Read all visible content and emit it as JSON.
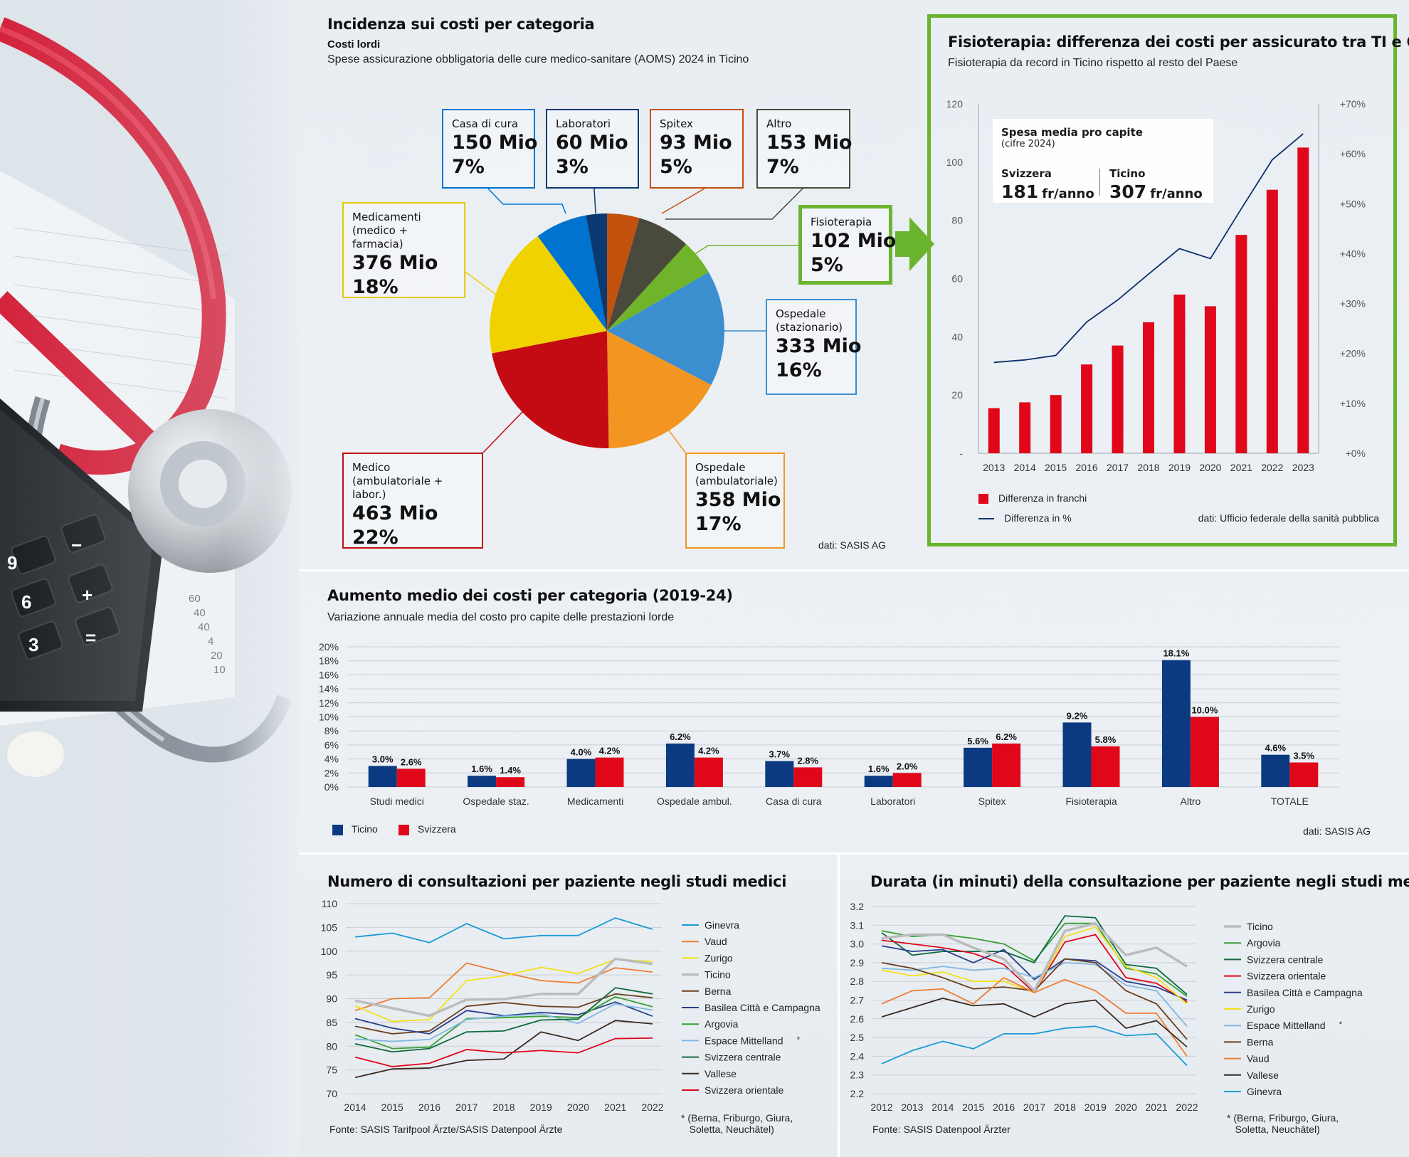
{
  "pie_panel": {
    "title": "Incidenza sui costi per categoria",
    "subtitle_bold": "Costi lordi",
    "subtitle": "Spese assicurazione obbligatoria delle cure medico-sanitare (AOMS) 2024 in Ticino",
    "source": "dati: SASIS AG"
  },
  "physio_panel": {
    "title": "Fisioterapia: differenza dei costi per assicurato tra TI e CH",
    "subtitle": "Fisioterapia da record in Ticino rispetto al resto del Paese",
    "inset_title": "Spesa media pro capite",
    "inset_subtitle": "(cifre 2024)",
    "inset_ch_label": "Svizzera",
    "inset_ch_value": "181",
    "inset_ti_label": "Ticino",
    "inset_ti_value": "307",
    "inset_unit": "fr/anno",
    "source": "dati: Ufficio federale della sanità pubblica"
  },
  "bar_panel": {
    "title": "Aumento medio dei costi per categoria (2019-24)",
    "subtitle": "Variazione annuale media del costo pro capite delle prestazioni lorde",
    "source": "dati: SASIS AG"
  },
  "consult_panel": {
    "title": "Numero di consultazioni per paziente negli studi medici",
    "source": "Fonte: SASIS Tarifpool Ärzte/SASIS Datenpool Ärzte",
    "footnote": "* (Berna, Friburgo, Giura,\n   Soletta, Neuchâtel)"
  },
  "duration_panel": {
    "title": "Durata (in minuti) della consultazione per paziente negli studi medici",
    "source": "Fonte: SASIS Datenpool Ärzter",
    "footnote": "* (Berna, Friburgo, Giura,\n   Soletta, Neuchâtel)"
  },
  "chart_data": [
    {
      "type": "pie",
      "title": "Incidenza sui costi per categoria",
      "slices": [
        {
          "name": "Spitex",
          "label_value": "93 Mio",
          "label_pct": "5%",
          "value": 93,
          "color": "#c1510d"
        },
        {
          "name": "Altro",
          "label_value": "153 Mio",
          "label_pct": "7%",
          "value": 153,
          "color": "#4a4a3c"
        },
        {
          "name": "Fisioterapia",
          "label_value": "102 Mio",
          "label_pct": "5%",
          "value": 102,
          "color": "#6fb42a"
        },
        {
          "name": "Ospedale\n(stazionario)",
          "label_value": "333 Mio",
          "label_pct": "16%",
          "value": 333,
          "color": "#3b8fcf"
        },
        {
          "name": "Ospedale\n(ambulatoriale)",
          "label_value": "358 Mio",
          "label_pct": "17%",
          "value": 358,
          "color": "#f29621"
        },
        {
          "name": "Medico\n(ambulatoriale + labor.)",
          "label_value": "463 Mio",
          "label_pct": "22%",
          "value": 463,
          "color": "#c40b13"
        },
        {
          "name": "Medicamenti\n(medico + farmacia)",
          "label_value": "376 Mio",
          "label_pct": "18%",
          "value": 376,
          "color": "#f0d200"
        },
        {
          "name": "Casa di cura",
          "label_value": "150 Mio",
          "label_pct": "7%",
          "value": 150,
          "color": "#0073cf"
        },
        {
          "name": "Laboratori",
          "label_value": "60 Mio",
          "label_pct": "3%",
          "value": 60,
          "color": "#0b3a72"
        }
      ]
    },
    {
      "type": "bar",
      "title": "Fisioterapia: differenza dei costi per assicurato tra TI e CH",
      "categories": [
        "2013",
        "2014",
        "2015",
        "2016",
        "2017",
        "2018",
        "2019",
        "2020",
        "2021",
        "2022",
        "2023"
      ],
      "series": [
        {
          "name": "Differenza in franchi",
          "type": "bar",
          "axis": "left",
          "color": "#e0071a",
          "values": [
            15.5,
            17.5,
            20,
            30.5,
            37,
            45,
            54.5,
            50.5,
            75,
            90.5,
            105
          ]
        },
        {
          "name": "Differenza in %",
          "type": "line",
          "axis": "right",
          "color": "#0b2f6b",
          "values": [
            18.2,
            18.7,
            19.6,
            26.3,
            30.7,
            35.9,
            41,
            39,
            49,
            58.8,
            64
          ]
        }
      ],
      "ylim": [
        0,
        120
      ],
      "yticks": [
        "-",
        "20",
        "40",
        "60",
        "80",
        "100",
        "120"
      ],
      "y2lim": [
        0,
        70
      ],
      "y2ticks": [
        "+0%",
        "+10%",
        "+20%",
        "+30%",
        "+40%",
        "+50%",
        "+60%",
        "+70%"
      ]
    },
    {
      "type": "bar",
      "title": "Aumento medio dei costi per categoria (2019-24)",
      "categories": [
        "Studi medici",
        "Ospedale staz.",
        "Medicamenti",
        "Ospedale ambul.",
        "Casa di cura",
        "Laboratori",
        "Spitex",
        "Fisioterapia",
        "Altro",
        "TOTALE"
      ],
      "series": [
        {
          "name": "Ticino",
          "color": "#0b3a80",
          "values": [
            3.0,
            1.6,
            4.0,
            6.2,
            3.7,
            1.6,
            5.6,
            9.2,
            18.1,
            4.6
          ],
          "labels": [
            "3.0%",
            "1.6%",
            "4.0%",
            "6.2%",
            "3.7%",
            "1.6%",
            "5.6%",
            "9.2%",
            "18.1%",
            "4.6%"
          ]
        },
        {
          "name": "Svizzera",
          "color": "#e0071a",
          "values": [
            2.6,
            1.4,
            4.2,
            4.2,
            2.8,
            2.0,
            6.2,
            5.8,
            10.0,
            3.5
          ],
          "labels": [
            "2.6%",
            "1.4%",
            "4.2%",
            "4.2%",
            "2.8%",
            "2.0%",
            "6.2%",
            "5.8%",
            "10.0%",
            "3.5%"
          ]
        }
      ],
      "ylim": [
        0,
        20
      ],
      "yticks": [
        "0%",
        "2%",
        "4%",
        "6%",
        "8%",
        "10%",
        "12%",
        "14%",
        "16%",
        "18%",
        "20%"
      ]
    },
    {
      "type": "line",
      "title": "Numero di consultazioni per paziente negli studi medici",
      "x": [
        "2014",
        "2015",
        "2016",
        "2017",
        "2018",
        "2019",
        "2020",
        "2021",
        "2022"
      ],
      "ylim": [
        70,
        110
      ],
      "yticks": [
        "70",
        "75",
        "80",
        "85",
        "90",
        "95",
        "100",
        "105",
        "110"
      ],
      "series": [
        {
          "name": "Ginevra",
          "color": "#1a9ad6",
          "values": [
            103,
            103.8,
            101.8,
            105.8,
            102.6,
            103.3,
            103.3,
            107,
            104.6
          ]
        },
        {
          "name": "Vaud",
          "color": "#ef7d32",
          "values": [
            87.5,
            90,
            90.2,
            97.5,
            95.5,
            93.8,
            93.3,
            96.5,
            95.6
          ]
        },
        {
          "name": "Zurigo",
          "color": "#f2e11a",
          "values": [
            88.5,
            85.2,
            85.6,
            93.8,
            94.8,
            96.6,
            95.3,
            98.3,
            97.8
          ]
        },
        {
          "name": "Ticino",
          "color": "#bcbcbc",
          "width": 3.5,
          "values": [
            89.6,
            88,
            86.4,
            89.8,
            89.9,
            91,
            91,
            98.4,
            97.3
          ]
        },
        {
          "name": "Berna",
          "color": "#6b3e1e",
          "values": [
            84.2,
            82.6,
            83.2,
            88.4,
            89.2,
            88.4,
            88.2,
            91,
            90.2
          ]
        },
        {
          "name": "Basilea Città e Campagna",
          "color": "#283d8c",
          "values": [
            85.8,
            83.8,
            82.6,
            87.5,
            86.4,
            87.1,
            86.6,
            89.3,
            86.3
          ]
        },
        {
          "name": "Argovia",
          "color": "#38a035",
          "values": [
            82.4,
            79.5,
            79.8,
            85.8,
            86,
            86.3,
            86,
            90.4,
            88.3
          ]
        },
        {
          "name": "Espace Mittelland",
          "marker": "*",
          "color": "#82b8e0",
          "values": [
            81.5,
            81,
            81.4,
            85.6,
            86.3,
            86.8,
            84.8,
            88.9,
            87.6
          ]
        },
        {
          "name": "Svizzera centrale",
          "color": "#0d6b3c",
          "values": [
            80.5,
            78.8,
            79.5,
            83,
            83.2,
            85.5,
            85.7,
            92.3,
            91
          ]
        },
        {
          "name": "Vallese",
          "color": "#3a2a20",
          "values": [
            73.4,
            75.2,
            75.4,
            77,
            77.3,
            83,
            81.2,
            85.4,
            84.7
          ]
        },
        {
          "name": "Svizzera orientale",
          "color": "#e0071a",
          "values": [
            77.7,
            75.7,
            76.4,
            79.3,
            78.6,
            79.1,
            78.6,
            81.6,
            81.7
          ]
        }
      ]
    },
    {
      "type": "line",
      "title": "Durata (in minuti) della consultazione per paziente negli studi medici",
      "x": [
        "2012",
        "2013",
        "2014",
        "2015",
        "2016",
        "2017",
        "2018",
        "2019",
        "2020",
        "2021",
        "2022"
      ],
      "ylim": [
        2.2,
        3.2
      ],
      "yticks": [
        "2.2",
        "2.3",
        "2.4",
        "2.5",
        "2.6",
        "2.7",
        "2.8",
        "2.9",
        "3.0",
        "3.1",
        "3.2"
      ],
      "series": [
        {
          "name": "Ticino",
          "color": "#bcbcbc",
          "width": 3.5,
          "values": [
            3.03,
            3.05,
            3.05,
            2.98,
            2.92,
            2.75,
            3.07,
            3.11,
            2.94,
            2.98,
            2.88
          ]
        },
        {
          "name": "Argovia",
          "color": "#38a035",
          "values": [
            3.07,
            3.04,
            3.05,
            3.03,
            3.0,
            2.91,
            3.11,
            3.11,
            2.87,
            2.84,
            2.72
          ]
        },
        {
          "name": "Svizzera centrale",
          "color": "#0d6b3c",
          "values": [
            3.06,
            2.94,
            2.96,
            2.96,
            2.96,
            2.9,
            3.15,
            3.14,
            2.89,
            2.87,
            2.73
          ]
        },
        {
          "name": "Svizzera orientale",
          "color": "#e0071a",
          "values": [
            3.02,
            3.0,
            2.98,
            2.95,
            2.89,
            2.74,
            3.01,
            3.05,
            2.82,
            2.79,
            2.69
          ]
        },
        {
          "name": "Basilea Città e Campagna",
          "color": "#283d8c",
          "values": [
            2.99,
            2.96,
            2.97,
            2.9,
            2.97,
            2.81,
            2.92,
            2.91,
            2.8,
            2.77,
            2.7
          ]
        },
        {
          "name": "Zurigo",
          "color": "#f2e11a",
          "values": [
            2.86,
            2.83,
            2.85,
            2.8,
            2.8,
            2.74,
            3.04,
            3.09,
            2.88,
            2.82,
            2.68
          ]
        },
        {
          "name": "Espace Mittelland",
          "marker": "*",
          "color": "#82b8e0",
          "values": [
            2.87,
            2.86,
            2.88,
            2.86,
            2.87,
            2.82,
            2.9,
            2.89,
            2.78,
            2.75,
            2.56
          ]
        },
        {
          "name": "Berna",
          "color": "#6b3e1e",
          "values": [
            2.9,
            2.87,
            2.82,
            2.76,
            2.77,
            2.75,
            2.92,
            2.9,
            2.75,
            2.68,
            2.49
          ]
        },
        {
          "name": "Vaud",
          "color": "#ef7d32",
          "values": [
            2.68,
            2.75,
            2.76,
            2.68,
            2.82,
            2.74,
            2.81,
            2.75,
            2.63,
            2.63,
            2.4
          ]
        },
        {
          "name": "Vallese",
          "color": "#3a2a20",
          "values": [
            2.61,
            2.66,
            2.71,
            2.67,
            2.68,
            2.61,
            2.68,
            2.7,
            2.55,
            2.59,
            2.45
          ]
        },
        {
          "name": "Ginevra",
          "color": "#1a9ad6",
          "values": [
            2.36,
            2.43,
            2.48,
            2.44,
            2.52,
            2.52,
            2.55,
            2.56,
            2.51,
            2.52,
            2.35
          ]
        }
      ]
    }
  ]
}
